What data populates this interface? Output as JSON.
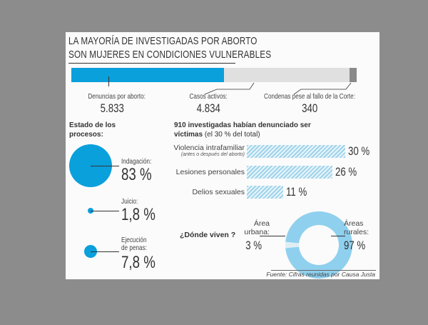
{
  "title": {
    "line1": "LA MAYORÍA DE INVESTIGADAS POR ABORTO",
    "line2": "SON MUJERES EN CONDICIONES VULNERABLES"
  },
  "chart_data": [
    {
      "type": "bar",
      "orientation": "stacked-horizontal",
      "categories": [
        "Denuncias por aborto:",
        "Casos activos:",
        "Condenas pese al fallo de la Corte:"
      ],
      "values": [
        5833,
        4834,
        340
      ],
      "value_labels": [
        "5.833",
        "4.834",
        "340"
      ],
      "colors": [
        "#0aa0dc",
        "#e0e0e0",
        "#8a8a8a"
      ]
    },
    {
      "type": "bubble",
      "title": "Estado de los procesos:",
      "categories": [
        "Indagación:",
        "Juicio:",
        "Ejecución de penas:"
      ],
      "values": [
        83,
        1.8,
        7.8
      ],
      "value_labels": [
        "83 %",
        "1,8 %",
        "7,8 %"
      ],
      "color": "#0aa0dc"
    },
    {
      "type": "bar",
      "orientation": "horizontal",
      "title_bold": "910 investigadas habían denunciado ser víctimas",
      "title_rest": "(el 30 % del total)",
      "categories": [
        "Violencia intrafamiliar",
        "Lesiones personales",
        "Delios sexuales"
      ],
      "category_note": "(antes o después del aborto)",
      "values": [
        30,
        26,
        11
      ],
      "value_labels": [
        "30 %",
        "26 %",
        "11 %"
      ],
      "color": "#9fd3ea"
    },
    {
      "type": "pie",
      "style": "donut",
      "title": "¿Dónde viven ?",
      "categories": [
        "Área urbana:",
        "Áreas rurales:"
      ],
      "values": [
        3,
        97
      ],
      "value_labels": [
        "3 %",
        "97 %"
      ],
      "colors": [
        "#dfeef5",
        "#8fd0ee"
      ]
    }
  ],
  "source": "Fuente: Cifras reunidas por Causa Justa"
}
